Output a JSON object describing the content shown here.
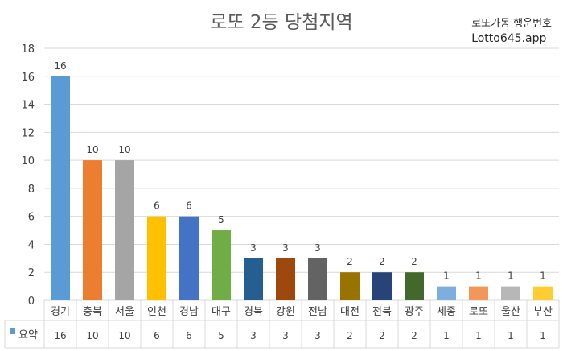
{
  "chart_data": {
    "type": "bar",
    "title": "로또 2등 당첨지역",
    "categories": [
      "경기",
      "충북",
      "서울",
      "인천",
      "경남",
      "대구",
      "경북",
      "강원",
      "전남",
      "대전",
      "전북",
      "광주",
      "세종",
      "로또",
      "울산",
      "부산"
    ],
    "series": [
      {
        "name": "요약",
        "values": [
          16,
          10,
          10,
          6,
          6,
          5,
          3,
          3,
          3,
          2,
          2,
          2,
          1,
          1,
          1,
          1
        ]
      }
    ],
    "bar_colors": [
      "#5B9BD5",
      "#ED7D31",
      "#A5A5A5",
      "#FFC000",
      "#4472C4",
      "#70AD47",
      "#255E91",
      "#9E480E",
      "#636363",
      "#997300",
      "#264478",
      "#43682B",
      "#7CAFDD",
      "#F1975A",
      "#B7B7B7",
      "#FFCD33"
    ],
    "ylim": [
      0,
      18
    ],
    "yticks": [
      0,
      2,
      4,
      6,
      8,
      10,
      12,
      14,
      16,
      18
    ],
    "grid": true,
    "legend": "data-table",
    "data_labels": true
  },
  "brand": {
    "line1": "로또가동 행운번호",
    "line2": "Lotto645.app"
  },
  "colors": {
    "gridline": "#D9D9D9",
    "axis_text": "#404040",
    "legend_key": "#5B9BD5"
  }
}
